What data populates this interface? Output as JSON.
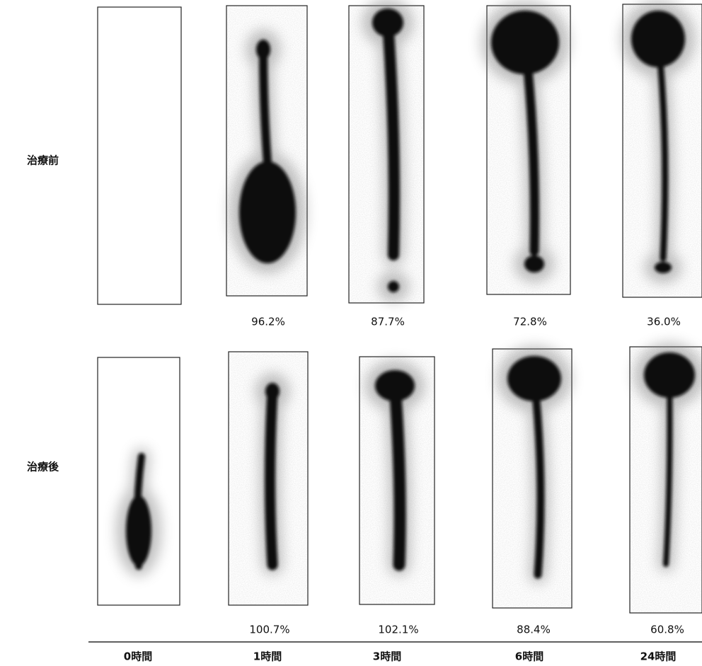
{
  "rows": [
    {
      "label": "治療前",
      "percentages": [
        "96.2%",
        "87.7%",
        "72.8%",
        "36.0%"
      ]
    },
    {
      "label": "治療後",
      "percentages": [
        "100.7%",
        "102.1%",
        "88.4%",
        "60.8%"
      ]
    }
  ],
  "time_labels": [
    "0時間",
    "1時間",
    "3時間",
    "6時間",
    "24時間"
  ]
}
